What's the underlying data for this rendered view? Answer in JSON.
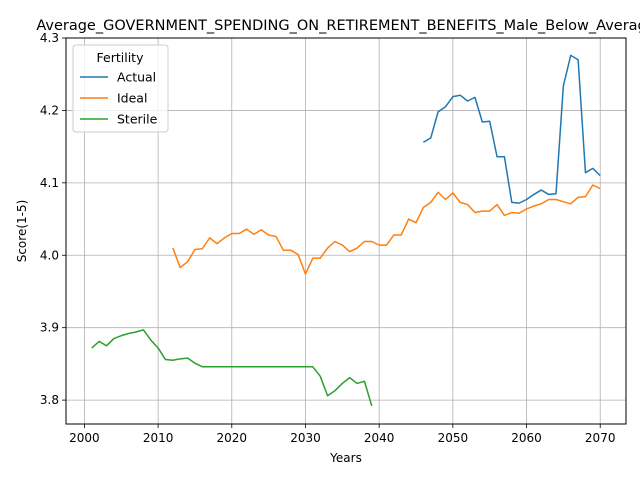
{
  "chart_data": {
    "type": "line",
    "title": "Average_GOVERNMENT_SPENDING_ON_RETIREMENT_BENEFITS_Male_Below_Average",
    "xlabel": "Years",
    "ylabel": "Score(1-5)",
    "xlim": [
      1997.5,
      2073.5
    ],
    "ylim": [
      3.767,
      4.3
    ],
    "xticks": [
      2000,
      2010,
      2020,
      2030,
      2040,
      2050,
      2060,
      2070
    ],
    "yticks": [
      3.8,
      3.9,
      4.0,
      4.1,
      4.2,
      4.3
    ],
    "grid": true,
    "legend": {
      "title": "Fertility",
      "position": "upper-left"
    },
    "series": [
      {
        "name": "Actual",
        "color": "#1f77b4",
        "x": [
          2046,
          2047,
          2048,
          2049,
          2050,
          2051,
          2052,
          2053,
          2054,
          2055,
          2056,
          2057,
          2058,
          2059,
          2060,
          2061,
          2062,
          2063,
          2064,
          2065,
          2066,
          2067,
          2068,
          2069,
          2070
        ],
        "y": [
          4.156,
          4.162,
          4.198,
          4.205,
          4.219,
          4.221,
          4.213,
          4.218,
          4.184,
          4.185,
          4.136,
          4.136,
          4.073,
          4.072,
          4.077,
          4.084,
          4.09,
          4.084,
          4.085,
          4.234,
          4.276,
          4.27,
          4.114,
          4.12,
          4.11
        ]
      },
      {
        "name": "Ideal",
        "color": "#ff7f0e",
        "x": [
          2012,
          2013,
          2014,
          2015,
          2016,
          2017,
          2018,
          2019,
          2020,
          2021,
          2022,
          2023,
          2024,
          2025,
          2026,
          2027,
          2028,
          2029,
          2030,
          2031,
          2032,
          2033,
          2034,
          2035,
          2036,
          2037,
          2038,
          2039,
          2040,
          2041,
          2042,
          2043,
          2044,
          2045,
          2046,
          2047,
          2048,
          2049,
          2050,
          2051,
          2052,
          2053,
          2054,
          2055,
          2056,
          2057,
          2058,
          2059,
          2060,
          2061,
          2062,
          2063,
          2064,
          2065,
          2066,
          2067,
          2068,
          2069,
          2070
        ],
        "y": [
          4.01,
          3.983,
          3.991,
          4.008,
          4.009,
          4.024,
          4.016,
          4.024,
          4.03,
          4.03,
          4.036,
          4.029,
          4.035,
          4.028,
          4.026,
          4.007,
          4.007,
          4.001,
          3.974,
          3.996,
          3.996,
          4.01,
          4.019,
          4.014,
          4.005,
          4.01,
          4.019,
          4.019,
          4.014,
          4.014,
          4.028,
          4.028,
          4.05,
          4.045,
          4.066,
          4.073,
          4.087,
          4.077,
          4.086,
          4.073,
          4.07,
          4.059,
          4.061,
          4.061,
          4.07,
          4.055,
          4.059,
          4.058,
          4.064,
          4.068,
          4.071,
          4.077,
          4.077,
          4.074,
          4.071,
          4.08,
          4.081,
          4.097,
          4.092
        ]
      },
      {
        "name": "Sterile",
        "color": "#2ca02c",
        "x": [
          2001,
          2002,
          2003,
          2004,
          2005,
          2006,
          2007,
          2008,
          2009,
          2010,
          2011,
          2012,
          2013,
          2014,
          2015,
          2016,
          2017,
          2018,
          2019,
          2020,
          2021,
          2022,
          2023,
          2024,
          2025,
          2026,
          2027,
          2028,
          2029,
          2030,
          2031,
          2032,
          2033,
          2034,
          2035,
          2036,
          2037,
          2038,
          2039
        ],
        "y": [
          3.872,
          3.881,
          3.875,
          3.885,
          3.889,
          3.892,
          3.894,
          3.897,
          3.883,
          3.872,
          3.856,
          3.855,
          3.857,
          3.858,
          3.851,
          3.846,
          3.846,
          3.846,
          3.846,
          3.846,
          3.846,
          3.846,
          3.846,
          3.846,
          3.846,
          3.846,
          3.846,
          3.846,
          3.846,
          3.846,
          3.846,
          3.833,
          3.806,
          3.813,
          3.823,
          3.831,
          3.823,
          3.826,
          3.792
        ]
      }
    ]
  }
}
